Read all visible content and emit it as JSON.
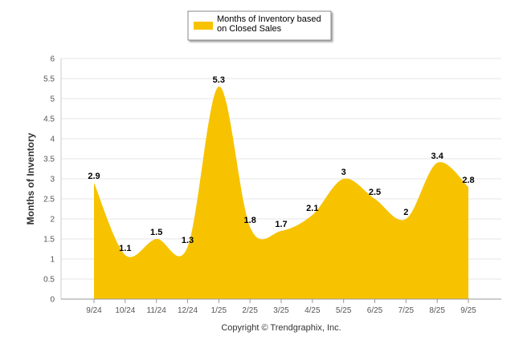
{
  "chart_data": {
    "type": "area",
    "title": "",
    "xlabel": "",
    "ylabel": "Months of Inventory",
    "ylim": [
      0,
      6
    ],
    "yticks": [
      "0",
      "0.5",
      "1",
      "1.5",
      "2",
      "2.5",
      "3",
      "3.5",
      "4",
      "4.5",
      "5",
      "5.5",
      "6"
    ],
    "grid": true,
    "legend_position": "top-center",
    "categories": [
      "9/24",
      "10/24",
      "11/24",
      "12/24",
      "1/25",
      "2/25",
      "3/25",
      "4/25",
      "5/25",
      "6/25",
      "7/25",
      "8/25",
      "9/25"
    ],
    "series": [
      {
        "name_lines": [
          "Months of Inventory based",
          "on Closed Sales"
        ],
        "color": "#F7C300",
        "values": [
          2.9,
          1.1,
          1.5,
          1.3,
          5.3,
          1.8,
          1.7,
          2.1,
          3,
          2.5,
          2,
          3.4,
          2.8
        ],
        "value_labels": [
          "2.9",
          "1.1",
          "1.5",
          "1.3",
          "5.3",
          "1.8",
          "1.7",
          "2.1",
          "3",
          "2.5",
          "2",
          "3.4",
          "2.8"
        ]
      }
    ],
    "copyright": "Copyright © Trendgraphix, Inc."
  }
}
